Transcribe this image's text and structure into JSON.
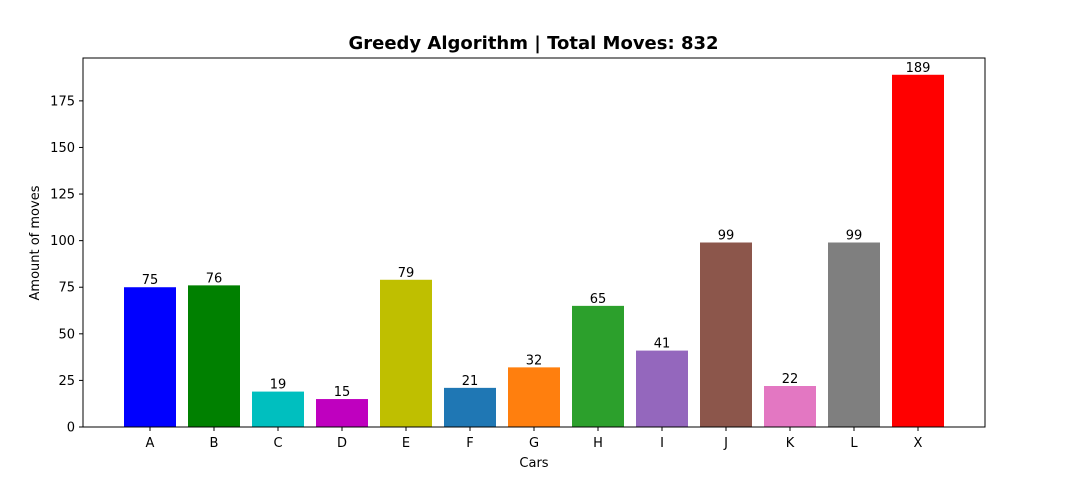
{
  "chart_data": {
    "type": "bar",
    "title": "Greedy Algorithm | Total Moves: 832",
    "xlabel": "Cars",
    "ylabel": "Amount of moves",
    "categories": [
      "A",
      "B",
      "C",
      "D",
      "E",
      "F",
      "G",
      "H",
      "I",
      "J",
      "K",
      "L",
      "X"
    ],
    "values": [
      75,
      76,
      19,
      15,
      79,
      21,
      32,
      65,
      41,
      99,
      22,
      99,
      189
    ],
    "colors": [
      "#0000ff",
      "#008000",
      "#00bfbf",
      "#bf00bf",
      "#bfbf00",
      "#1f77b4",
      "#ff7f0e",
      "#2ca02c",
      "#9467bd",
      "#8c564b",
      "#e377c2",
      "#7f7f7f",
      "#ff0000"
    ],
    "ylim": [
      0,
      198
    ],
    "yticks": [
      0,
      25,
      50,
      75,
      100,
      125,
      150,
      175
    ],
    "grid": false,
    "legend": "none"
  }
}
